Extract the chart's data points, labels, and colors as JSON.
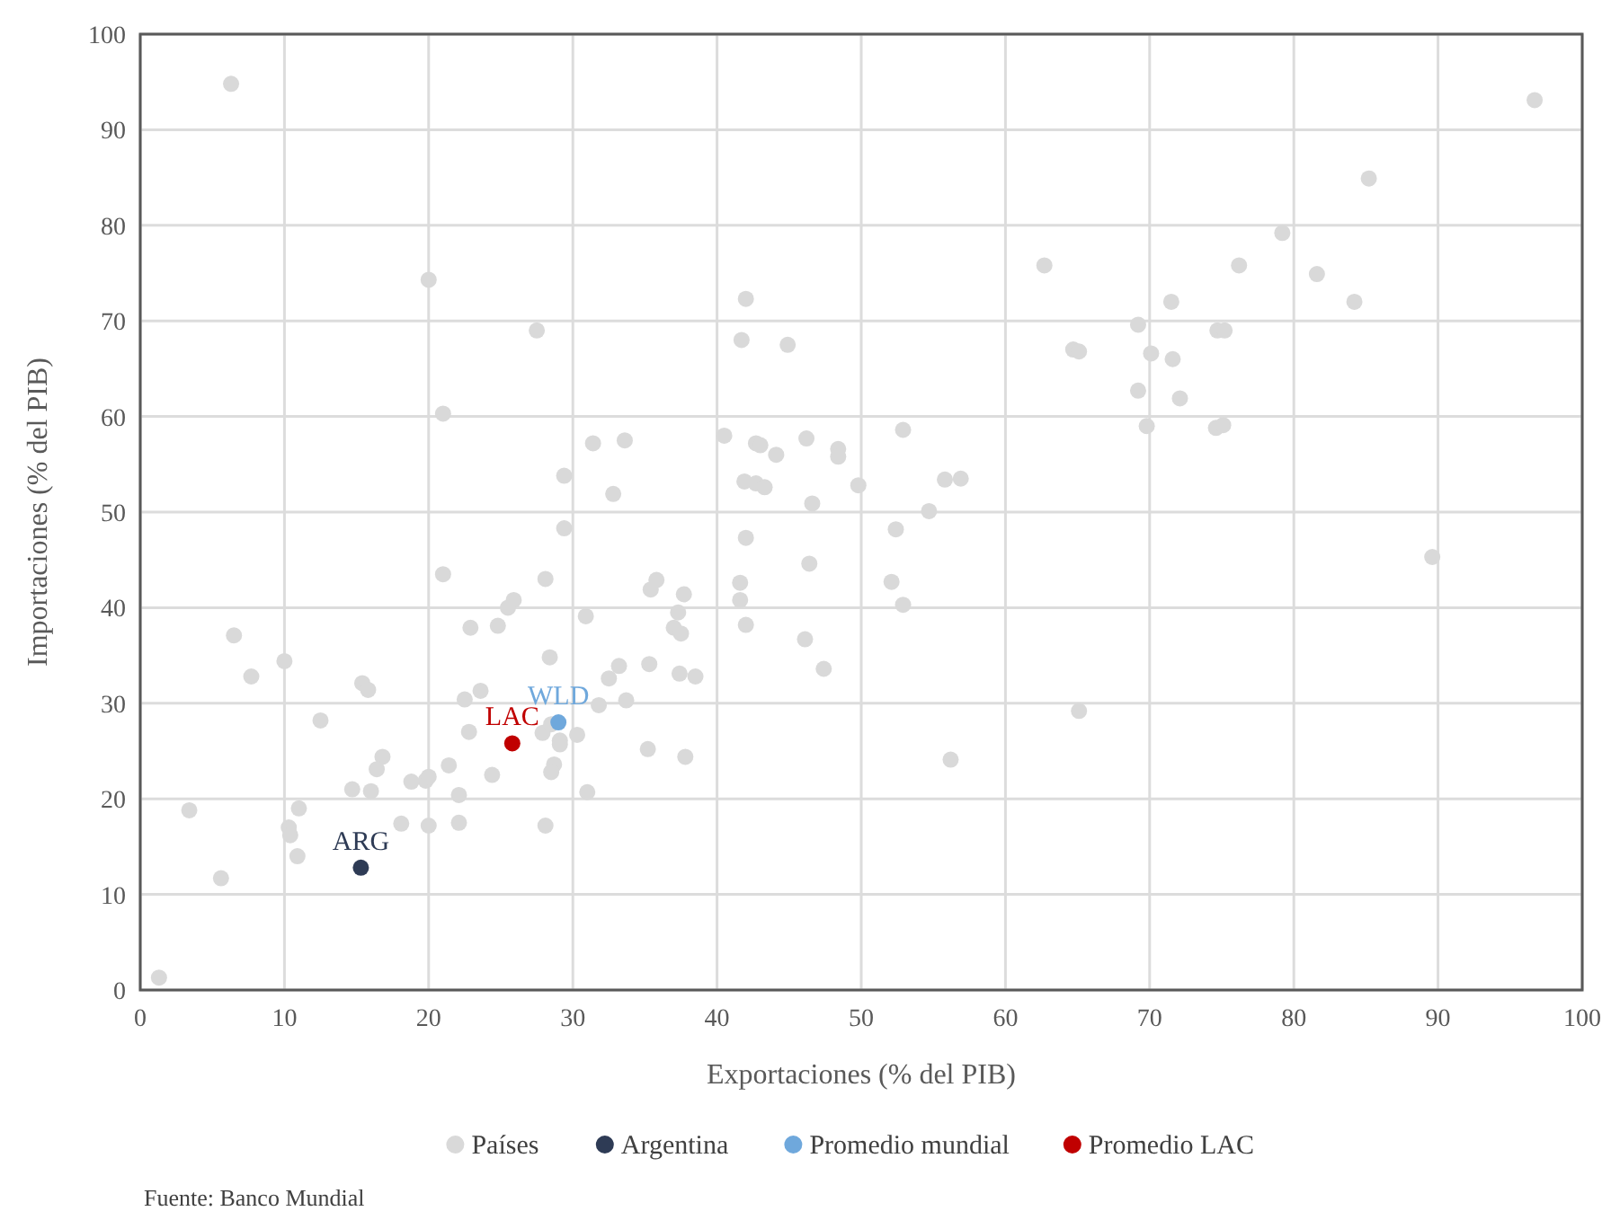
{
  "chart_data": {
    "type": "scatter",
    "xlabel": "Exportaciones (% del PIB)",
    "ylabel": "Importaciones (% del PIB)",
    "xlim": [
      0,
      100
    ],
    "ylim": [
      0,
      100
    ],
    "xticks": [
      0,
      10,
      20,
      30,
      40,
      50,
      60,
      70,
      80,
      90,
      100
    ],
    "yticks": [
      0,
      10,
      20,
      30,
      40,
      50,
      60,
      70,
      80,
      90,
      100
    ],
    "grid": true,
    "legend": "bottom",
    "marker": "circle",
    "series": [
      {
        "name": "Países",
        "color": "#d9d9d9",
        "x": [
          6.3,
          96.7,
          85.2,
          79.2,
          81.6,
          84.2,
          76.2,
          62.7,
          71.5,
          42.0,
          20.0,
          27.5,
          41.7,
          44.9,
          64.7,
          65.1,
          69.2,
          70.1,
          71.6,
          74.7,
          75.2,
          69.2,
          72.1,
          69.8,
          74.6,
          75.1,
          21.0,
          31.4,
          33.6,
          40.5,
          42.7,
          43.0,
          44.1,
          46.2,
          48.4,
          48.4,
          52.9,
          29.4,
          32.8,
          41.9,
          42.7,
          43.3,
          46.6,
          49.8,
          54.7,
          55.8,
          56.9,
          29.4,
          42.0,
          52.4,
          21.0,
          28.1,
          41.6,
          41.6,
          42.0,
          46.4,
          52.1,
          52.9,
          46.1,
          30.9,
          25.9,
          25.5,
          24.8,
          22.9,
          35.8,
          35.4,
          37.7,
          37.3,
          37.0,
          37.5,
          35.3,
          33.2,
          37.4,
          38.5,
          32.5,
          33.7,
          31.8,
          28.4,
          23.6,
          22.5,
          22.8,
          27.9,
          28.5,
          29.1,
          29.1,
          30.3,
          28.7,
          28.5,
          31.0,
          24.4,
          21.4,
          19.8,
          20.0,
          18.8,
          16.8,
          16.4,
          14.7,
          16.0,
          22.1,
          22.1,
          18.1,
          20.0,
          28.1,
          15.4,
          15.8,
          12.5,
          10.0,
          6.5,
          7.7,
          10.3,
          10.4,
          11.0,
          10.9,
          3.4,
          5.6,
          1.3,
          37.8,
          35.2,
          47.4,
          56.2,
          65.1,
          89.6
        ],
        "values": [
          94.8,
          93.1,
          84.9,
          79.2,
          74.9,
          72.0,
          75.8,
          75.8,
          72.0,
          72.3,
          74.3,
          69.0,
          68.0,
          67.5,
          67.0,
          66.8,
          69.6,
          66.6,
          66.0,
          69.0,
          69.0,
          62.7,
          61.9,
          59.0,
          58.8,
          59.1,
          60.3,
          57.2,
          57.5,
          58.0,
          57.2,
          57.0,
          56.0,
          57.7,
          56.6,
          55.8,
          58.6,
          53.8,
          51.9,
          53.2,
          53.0,
          52.6,
          50.9,
          52.8,
          50.1,
          53.4,
          53.5,
          48.3,
          47.3,
          48.2,
          43.5,
          43.0,
          42.6,
          40.8,
          38.2,
          44.6,
          42.7,
          40.3,
          36.7,
          39.1,
          40.8,
          40.0,
          38.1,
          37.9,
          42.9,
          41.9,
          41.4,
          39.5,
          37.9,
          37.3,
          34.1,
          33.9,
          33.1,
          32.8,
          32.6,
          30.3,
          29.8,
          34.8,
          31.3,
          30.4,
          27.0,
          26.9,
          27.8,
          26.1,
          25.7,
          26.7,
          23.6,
          22.8,
          20.7,
          22.5,
          23.5,
          21.9,
          22.3,
          21.8,
          24.4,
          23.1,
          21.0,
          20.8,
          20.4,
          17.5,
          17.4,
          17.2,
          17.2,
          32.1,
          31.4,
          28.2,
          34.4,
          37.1,
          32.8,
          17.0,
          16.2,
          19.0,
          14.0,
          18.8,
          11.7,
          1.3,
          24.4,
          25.2,
          33.6,
          24.1,
          29.2,
          45.3
        ]
      },
      {
        "name": "Argentina",
        "color": "#2e3b55",
        "x": [
          15.3
        ],
        "values": [
          12.8
        ]
      },
      {
        "name": "Promedio mundial",
        "color": "#6fa8dc",
        "x": [
          29.0
        ],
        "values": [
          28.0
        ]
      },
      {
        "name": "Promedio LAC",
        "color": "#c00000",
        "x": [
          25.8
        ],
        "values": [
          25.8
        ]
      }
    ],
    "annotations": [
      {
        "text": "ARG",
        "x": 15.3,
        "y": 12.8
      },
      {
        "text": "WLD",
        "x": 29.0,
        "y": 28.0
      },
      {
        "text": "LAC",
        "x": 25.8,
        "y": 25.8
      },
      "Fuente: Banco Mundial"
    ]
  }
}
